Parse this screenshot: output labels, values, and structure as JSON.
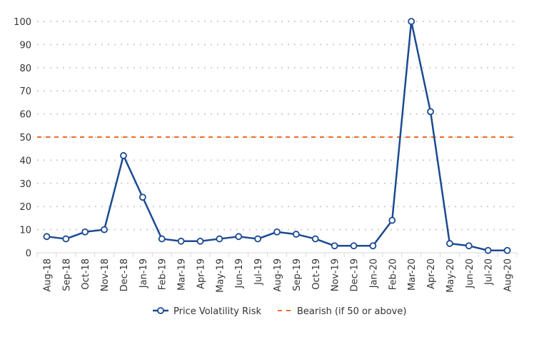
{
  "chart_data": {
    "type": "line",
    "title": "",
    "xlabel": "",
    "ylabel": "",
    "ylim": [
      0,
      100
    ],
    "yticks": [
      0,
      10,
      20,
      30,
      40,
      50,
      60,
      70,
      80,
      90,
      100
    ],
    "grid": "horizontal dotted",
    "legend_position": "bottom",
    "categories": [
      "Aug-18",
      "Sep-18",
      "Oct-18",
      "Nov-18",
      "Dec-18",
      "Jan-19",
      "Feb-19",
      "Mar-19",
      "Apr-19",
      "May-19",
      "Jun-19",
      "Jul-19",
      "Aug-19",
      "Sep-19",
      "Oct-19",
      "Nov-19",
      "Dec-19",
      "Jan-20",
      "Feb-20",
      "Mar-20",
      "Apr-20",
      "May-20",
      "Jun-20",
      "Jul-20",
      "Aug-20"
    ],
    "series": [
      {
        "name": "Price Volatility Risk",
        "color": "#1c4a92",
        "marker": "hollow-circle",
        "values": [
          7,
          6,
          9,
          10,
          42,
          24,
          6,
          5,
          5,
          6,
          7,
          6,
          9,
          8,
          6,
          3,
          3,
          3,
          14,
          100,
          61,
          4,
          3,
          1,
          1
        ]
      }
    ],
    "reference_lines": [
      {
        "name": "Bearish (if 50 or above)",
        "value": 50,
        "color": "#f26b21",
        "style": "dashed"
      }
    ]
  }
}
